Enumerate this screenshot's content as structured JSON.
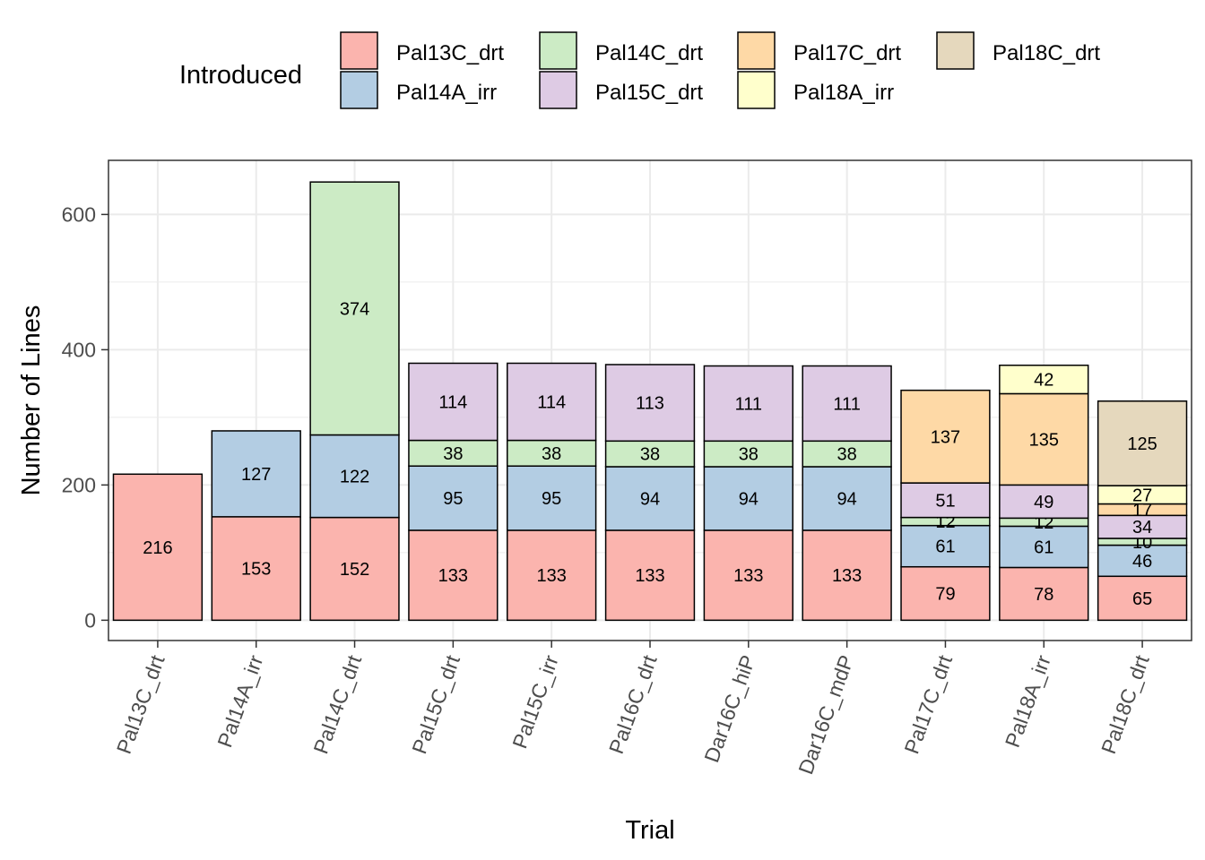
{
  "chart_data": {
    "type": "bar",
    "stacked": true,
    "xlabel": "Trial",
    "ylabel": "Number of Lines",
    "ylim": [
      -30,
      680
    ],
    "yticks": [
      0,
      200,
      400,
      600
    ],
    "grid": true,
    "legend": {
      "title": "Introduced",
      "position": "top",
      "entries": [
        {
          "name": "Pal13C_drt",
          "color": "#FBB4AE"
        },
        {
          "name": "Pal14C_drt",
          "color": "#CCEBC5"
        },
        {
          "name": "Pal17C_drt",
          "color": "#FED9A6"
        },
        {
          "name": "Pal18C_drt",
          "color": "#E5D8BD"
        },
        {
          "name": "Pal14A_irr",
          "color": "#B3CDE3"
        },
        {
          "name": "Pal15C_drt",
          "color": "#DECBE4"
        },
        {
          "name": "Pal18A_irr",
          "color": "#FFFFCC"
        }
      ]
    },
    "categories": [
      "Pal13C_drt",
      "Pal14A_irr",
      "Pal14C_drt",
      "Pal15C_drt",
      "Pal15C_irr",
      "Pal16C_drt",
      "Dar16C_hiP",
      "Dar16C_mdP",
      "Pal17C_drt",
      "Pal18A_irr",
      "Pal18C_drt"
    ],
    "series": [
      {
        "name": "Pal13C_drt",
        "color": "#FBB4AE",
        "values": [
          216,
          153,
          152,
          133,
          133,
          133,
          133,
          133,
          79,
          78,
          65
        ]
      },
      {
        "name": "Pal14A_irr",
        "color": "#B3CDE3",
        "values": [
          null,
          127,
          122,
          95,
          95,
          94,
          94,
          94,
          61,
          61,
          46
        ]
      },
      {
        "name": "Pal14C_drt",
        "color": "#CCEBC5",
        "values": [
          null,
          null,
          374,
          38,
          38,
          38,
          38,
          38,
          12,
          12,
          10
        ]
      },
      {
        "name": "Pal15C_drt",
        "color": "#DECBE4",
        "values": [
          null,
          null,
          null,
          114,
          114,
          113,
          111,
          111,
          51,
          49,
          34
        ]
      },
      {
        "name": "Pal17C_drt",
        "color": "#FED9A6",
        "values": [
          null,
          null,
          null,
          null,
          null,
          null,
          null,
          null,
          137,
          135,
          17
        ]
      },
      {
        "name": "Pal18A_irr",
        "color": "#FFFFCC",
        "values": [
          null,
          null,
          null,
          null,
          null,
          null,
          null,
          null,
          null,
          42,
          27
        ]
      },
      {
        "name": "Pal18C_drt",
        "color": "#E5D8BD",
        "values": [
          null,
          null,
          null,
          null,
          null,
          null,
          null,
          null,
          null,
          null,
          125
        ]
      }
    ]
  }
}
